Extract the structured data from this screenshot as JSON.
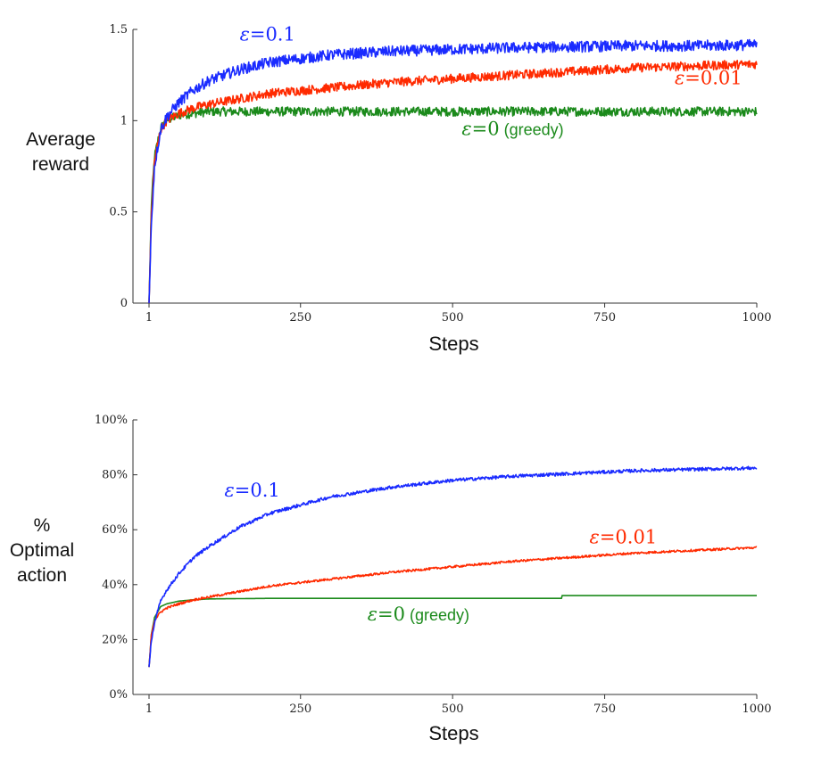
{
  "chart_data": [
    {
      "type": "line",
      "xlabel": "Steps",
      "ylabel_lines": [
        "Average",
        "reward"
      ],
      "xlim": [
        1,
        1000
      ],
      "ylim": [
        0,
        1.5
      ],
      "x_ticks": [
        1,
        250,
        500,
        750,
        1000
      ],
      "x_tick_labels": [
        "1",
        "250",
        "500",
        "750",
        "1000"
      ],
      "y_ticks": [
        0,
        0.5,
        1,
        1.5
      ],
      "y_tick_labels": [
        "0",
        "0.5",
        "1",
        "1.5"
      ],
      "grid": false,
      "series": [
        {
          "name": "ε=0 (greedy)",
          "color": "#1b8a1b",
          "noise": 0.025,
          "x": [
            1,
            5,
            10,
            20,
            30,
            50,
            75,
            100,
            150,
            200,
            300,
            400,
            500,
            600,
            700,
            800,
            900,
            1000
          ],
          "values": [
            0.0,
            0.55,
            0.8,
            0.96,
            1.0,
            1.03,
            1.04,
            1.05,
            1.05,
            1.05,
            1.05,
            1.05,
            1.05,
            1.05,
            1.05,
            1.05,
            1.05,
            1.05
          ]
        },
        {
          "name": "ε=0.01",
          "color": "#ff2a00",
          "noise": 0.025,
          "x": [
            1,
            5,
            10,
            20,
            30,
            50,
            75,
            100,
            150,
            200,
            300,
            400,
            500,
            600,
            700,
            800,
            900,
            1000
          ],
          "values": [
            0.0,
            0.5,
            0.78,
            0.95,
            1.0,
            1.04,
            1.07,
            1.09,
            1.12,
            1.15,
            1.18,
            1.21,
            1.23,
            1.25,
            1.27,
            1.29,
            1.3,
            1.31
          ]
        },
        {
          "name": "ε=0.1",
          "color": "#1a2bff",
          "noise": 0.03,
          "x": [
            1,
            5,
            10,
            20,
            30,
            50,
            75,
            100,
            150,
            200,
            300,
            400,
            500,
            600,
            700,
            800,
            900,
            1000
          ],
          "values": [
            0.0,
            0.45,
            0.75,
            0.95,
            1.02,
            1.1,
            1.17,
            1.22,
            1.28,
            1.32,
            1.36,
            1.38,
            1.39,
            1.4,
            1.405,
            1.41,
            1.41,
            1.415
          ]
        }
      ],
      "annotations": [
        {
          "series": "ε=0.1",
          "eps": "ε",
          "value_text": "=0.1",
          "suffix": "",
          "color": "#1a2bff",
          "at": [
            150,
            1.44
          ]
        },
        {
          "series": "ε=0.01",
          "eps": "ε",
          "value_text": "=0.01",
          "suffix": "",
          "color": "#ff2a00",
          "at": [
            865,
            1.2
          ]
        },
        {
          "series": "ε=0 (greedy)",
          "eps": "ε",
          "value_text": "=0",
          "suffix": " (greedy)",
          "color": "#1b8a1b",
          "at": [
            515,
            0.92
          ]
        }
      ]
    },
    {
      "type": "line",
      "xlabel": "Steps",
      "ylabel_lines": [
        "%",
        "Optimal",
        "action"
      ],
      "xlim": [
        1,
        1000
      ],
      "ylim": [
        0,
        100
      ],
      "x_ticks": [
        1,
        250,
        500,
        750,
        1000
      ],
      "x_tick_labels": [
        "1",
        "250",
        "500",
        "750",
        "1000"
      ],
      "y_ticks": [
        0,
        20,
        40,
        60,
        80,
        100
      ],
      "y_tick_labels": [
        "0%",
        "20%",
        "40%",
        "60%",
        "80%",
        "100%"
      ],
      "grid": false,
      "series": [
        {
          "name": "ε=0 (greedy)",
          "color": "#1b8a1b",
          "noise": 0.0,
          "x": [
            1,
            5,
            10,
            20,
            30,
            50,
            75,
            100,
            150,
            200,
            300,
            400,
            500,
            600,
            679,
            680,
            700,
            800,
            900,
            1000
          ],
          "values": [
            10,
            22,
            28,
            32,
            33,
            34,
            34.5,
            34.8,
            34.9,
            35,
            35,
            35,
            35,
            35,
            35,
            36,
            36,
            36,
            36,
            36
          ]
        },
        {
          "name": "ε=0.01",
          "color": "#ff2a00",
          "noise": 0.4,
          "x": [
            1,
            5,
            10,
            20,
            30,
            50,
            75,
            100,
            150,
            200,
            300,
            400,
            500,
            600,
            700,
            800,
            900,
            1000
          ],
          "values": [
            10,
            22,
            27,
            30,
            31.5,
            33,
            34.5,
            35.5,
            37.5,
            39.5,
            42,
            44.5,
            46.5,
            48.5,
            50,
            51.5,
            52.5,
            53.5
          ]
        },
        {
          "name": "ε=0.1",
          "color": "#1a2bff",
          "noise": 0.6,
          "x": [
            1,
            5,
            10,
            20,
            30,
            50,
            75,
            100,
            150,
            200,
            300,
            400,
            500,
            600,
            700,
            800,
            900,
            1000
          ],
          "values": [
            10,
            20,
            26,
            34,
            38,
            44,
            50,
            54,
            61,
            66,
            72,
            75.5,
            78,
            79.5,
            80.5,
            81.5,
            82,
            82.5
          ]
        }
      ],
      "annotations": [
        {
          "series": "ε=0.1",
          "eps": "ε",
          "value_text": "=0.1",
          "suffix": "",
          "color": "#1a2bff",
          "at": [
            125,
            72
          ]
        },
        {
          "series": "ε=0.01",
          "eps": "ε",
          "value_text": "=0.01",
          "suffix": "",
          "color": "#ff2a00",
          "at": [
            725,
            55
          ]
        },
        {
          "series": "ε=0 (greedy)",
          "eps": "ε",
          "value_text": "=0",
          "suffix": " (greedy)",
          "color": "#1b8a1b",
          "at": [
            360,
            27
          ]
        }
      ]
    }
  ]
}
